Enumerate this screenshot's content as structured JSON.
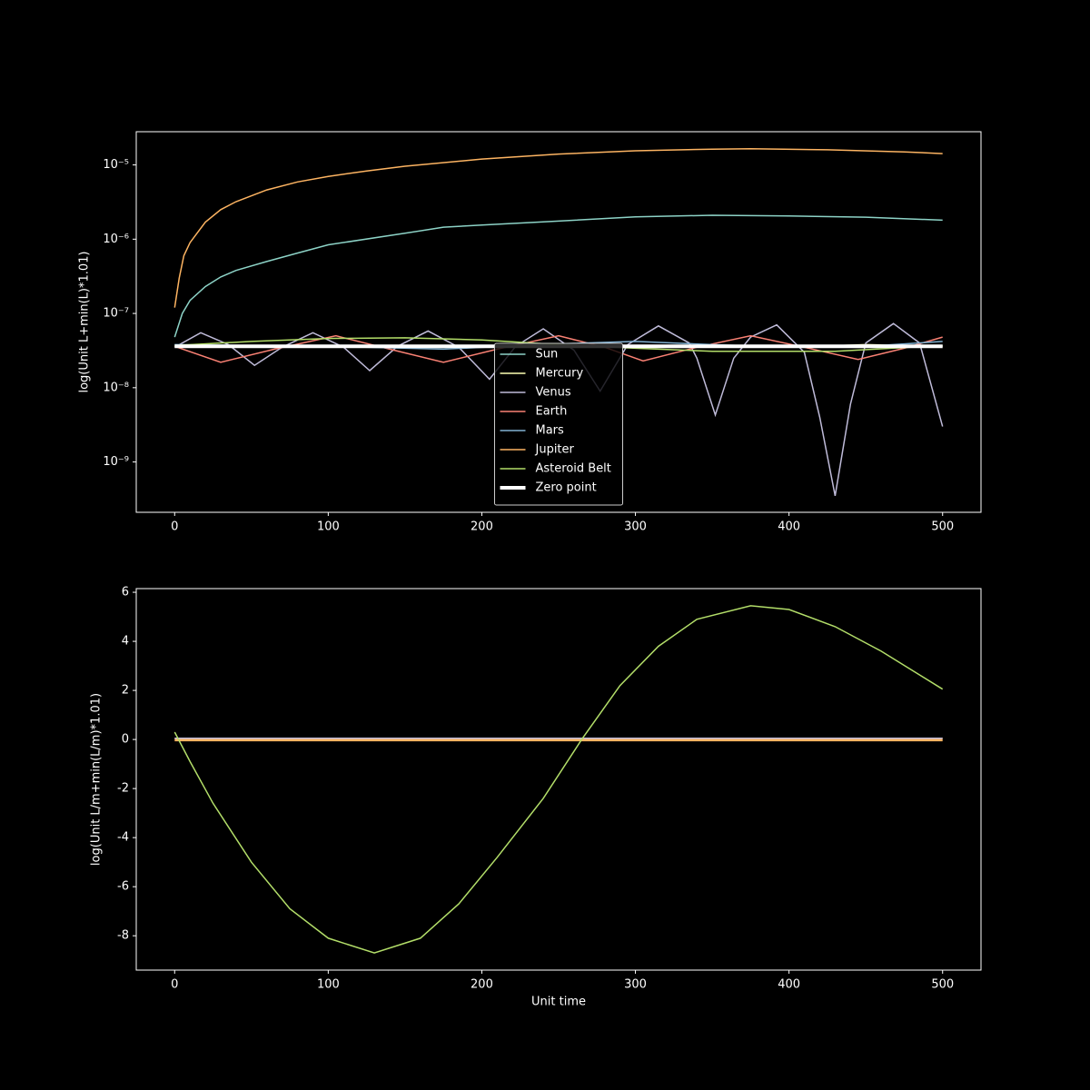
{
  "chart_data": [
    {
      "type": "line",
      "log_y": true,
      "ylabel": "log(Unit L+min(L)*1.01)",
      "legend": "lower center",
      "xlim": [
        -25,
        525
      ],
      "xticks": [
        0,
        100,
        200,
        300,
        400,
        500
      ],
      "ylim": [
        2.1e-10,
        2.8e-05
      ],
      "yticks": [
        {
          "value": 1e-09,
          "label": "10⁻⁹"
        },
        {
          "value": 1e-08,
          "label": "10⁻⁸"
        },
        {
          "value": 1e-07,
          "label": "10⁻⁷"
        },
        {
          "value": 1e-06,
          "label": "10⁻⁶"
        },
        {
          "value": 1e-05,
          "label": "10⁻⁵"
        }
      ],
      "series": [
        {
          "name": "Sun",
          "color": "#8dd3c7",
          "width": 1.5,
          "x": [
            0,
            5,
            10,
            20,
            30,
            40,
            60,
            80,
            100,
            150,
            175,
            200,
            250,
            300,
            350,
            400,
            450,
            500
          ],
          "values": [
            4.8e-08,
            1e-07,
            1.5e-07,
            2.3e-07,
            3.1e-07,
            3.8e-07,
            5e-07,
            6.5e-07,
            8.4e-07,
            1.2e-06,
            1.45e-06,
            1.55e-06,
            1.75e-06,
            2e-06,
            2.1e-06,
            2.05e-06,
            1.98e-06,
            1.8e-06
          ]
        },
        {
          "name": "Mercury",
          "color": "#feffb3",
          "width": 1.5,
          "x": [
            0,
            50,
            100,
            150,
            200,
            250,
            300,
            350,
            400,
            450,
            500
          ],
          "values": [
            3.6e-08,
            3.7e-08,
            3.5e-08,
            3.7e-08,
            3.6e-08,
            3.8e-08,
            3.5e-08,
            3.7e-08,
            3.5e-08,
            3.8e-08,
            3.6e-08
          ]
        },
        {
          "name": "Venus",
          "color": "#bfbbd9",
          "width": 1.5,
          "x": [
            0,
            17,
            35,
            52,
            70,
            90,
            110,
            127,
            145,
            165,
            185,
            205,
            222,
            240,
            260,
            277,
            295,
            315,
            335,
            340,
            352,
            364,
            375,
            392,
            410,
            420,
            430,
            440,
            450,
            468,
            485,
            500
          ],
          "values": [
            3.5e-08,
            5.5e-08,
            3.8e-08,
            2e-08,
            3.5e-08,
            5.5e-08,
            3.5e-08,
            1.7e-08,
            3.6e-08,
            5.8e-08,
            3.5e-08,
            1.3e-08,
            3.6e-08,
            6.2e-08,
            3.2e-08,
            9e-09,
            3.8e-08,
            6.8e-08,
            4e-08,
            2.5e-08,
            4.3e-09,
            2.5e-08,
            4.8e-08,
            7e-08,
            3e-08,
            4e-09,
            3.5e-10,
            6e-09,
            4e-08,
            7.3e-08,
            4e-08,
            3e-09
          ]
        },
        {
          "name": "Earth",
          "color": "#fa8174",
          "width": 1.5,
          "x": [
            0,
            30,
            65,
            105,
            140,
            175,
            210,
            250,
            280,
            305,
            340,
            375,
            410,
            445,
            475,
            500
          ],
          "values": [
            3.6e-08,
            2.2e-08,
            3.3e-08,
            5e-08,
            3.3e-08,
            2.2e-08,
            3.3e-08,
            5e-08,
            3.5e-08,
            2.3e-08,
            3.5e-08,
            5e-08,
            3.5e-08,
            2.4e-08,
            3.4e-08,
            4.8e-08
          ]
        },
        {
          "name": "Mars",
          "color": "#81b1d2",
          "width": 1.5,
          "x": [
            0,
            100,
            175,
            250,
            300,
            350,
            400,
            450,
            500
          ],
          "values": [
            3.8e-08,
            3.6e-08,
            3.3e-08,
            3.9e-08,
            4.2e-08,
            3.8e-08,
            3.5e-08,
            3.6e-08,
            4.2e-08
          ]
        },
        {
          "name": "Jupiter",
          "color": "#fdb462",
          "width": 1.5,
          "x": [
            0,
            3,
            6,
            10,
            20,
            30,
            40,
            60,
            80,
            100,
            125,
            150,
            200,
            250,
            300,
            350,
            375,
            425,
            475,
            500
          ],
          "values": [
            1.2e-07,
            3e-07,
            6e-07,
            9e-07,
            1.7e-06,
            2.5e-06,
            3.2e-06,
            4.6e-06,
            5.9e-06,
            7e-06,
            8.3e-06,
            9.6e-06,
            1.2e-05,
            1.4e-05,
            1.55e-05,
            1.63e-05,
            1.65e-05,
            1.6e-05,
            1.5e-05,
            1.42e-05
          ]
        },
        {
          "name": "Asteroid Belt",
          "color": "#b3de69",
          "width": 1.5,
          "x": [
            0,
            50,
            100,
            150,
            200,
            250,
            300,
            350,
            430,
            500
          ],
          "values": [
            3.7e-08,
            4.2e-08,
            4.6e-08,
            4.7e-08,
            4.4e-08,
            3.8e-08,
            3.4e-08,
            3.1e-08,
            3.1e-08,
            3.7e-08
          ]
        },
        {
          "name": "Zero point",
          "color": "#ffffff",
          "width": 4,
          "x": [
            0,
            500
          ],
          "values": [
            3.6e-08,
            3.6e-08
          ]
        }
      ]
    },
    {
      "type": "line",
      "log_y": false,
      "ylabel": "log(Unit L/m+min(L/m)*1.01)",
      "xlabel": "Unit time",
      "xlim": [
        -25,
        525
      ],
      "xticks": [
        0,
        100,
        200,
        300,
        400,
        500
      ],
      "ylim": [
        -9.4,
        6.15
      ],
      "yticks": [
        -8,
        -6,
        -4,
        -2,
        0,
        2,
        4,
        6
      ],
      "series": [
        {
          "color": "#fdb462",
          "width": 4,
          "x": [
            0,
            500
          ],
          "values": [
            0,
            0
          ]
        },
        {
          "color": "#bfbbd9",
          "width": 1.5,
          "x": [
            0,
            500
          ],
          "values": [
            0.05,
            0.05
          ]
        },
        {
          "color": "#b3de69",
          "width": 1.5,
          "x": [
            0,
            10,
            25,
            50,
            75,
            100,
            130,
            160,
            185,
            210,
            240,
            265,
            290,
            315,
            340,
            375,
            400,
            430,
            460,
            500
          ],
          "values": [
            0.3,
            -0.9,
            -2.6,
            -5,
            -6.9,
            -8.1,
            -8.7,
            -8.1,
            -6.7,
            -4.8,
            -2.4,
            0,
            2.2,
            3.8,
            4.9,
            5.45,
            5.3,
            4.6,
            3.6,
            2.05
          ]
        }
      ]
    }
  ]
}
